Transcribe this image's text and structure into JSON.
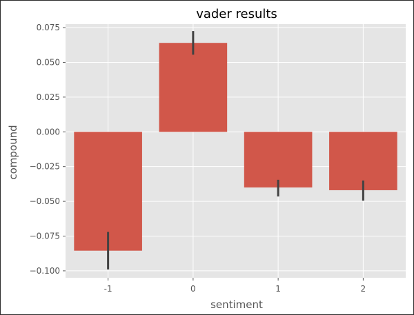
{
  "chart_data": {
    "type": "bar",
    "title": "vader results",
    "xlabel": "sentiment",
    "ylabel": "compound",
    "categories": [
      "-1",
      "0",
      "1",
      "2"
    ],
    "values": [
      -0.0855,
      0.064,
      -0.04,
      -0.042
    ],
    "error_bars": [
      [
        -0.099,
        -0.072
      ],
      [
        0.0555,
        0.0725
      ],
      [
        -0.0465,
        -0.0345
      ],
      [
        -0.0495,
        -0.035
      ]
    ],
    "ylim": [
      -0.105,
      0.0775
    ],
    "yticks": [
      -0.1,
      -0.075,
      -0.05,
      -0.025,
      0.0,
      0.025,
      0.05,
      0.075
    ],
    "ytick_labels": [
      "−0.100",
      "−0.075",
      "−0.050",
      "−0.025",
      "0.000",
      "0.025",
      "0.050",
      "0.075"
    ],
    "grid": true,
    "bar_color": "#d1574a",
    "errorbar_color": "#424242",
    "plot_background": "#e5e5e5",
    "grid_color": "#ffffff"
  }
}
